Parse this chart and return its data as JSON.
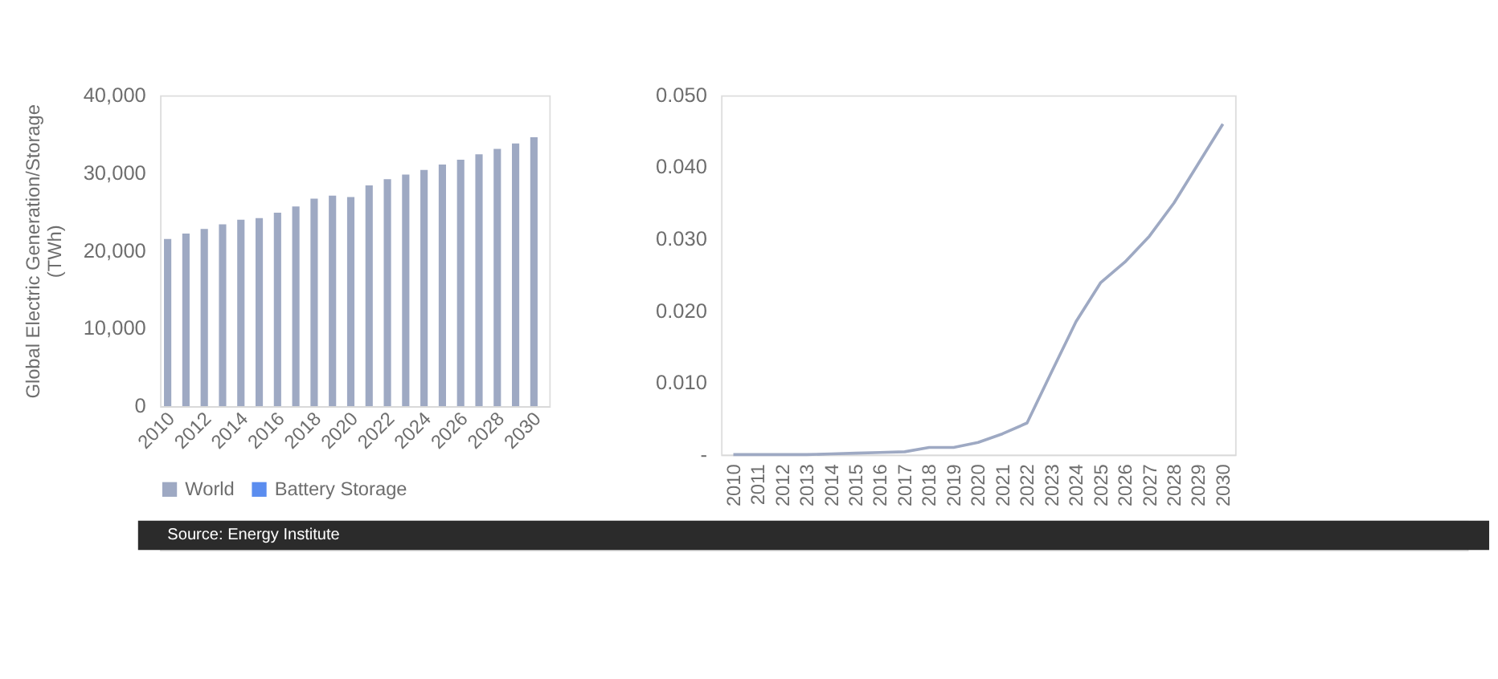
{
  "chart_data": [
    {
      "type": "bar",
      "ylabel": "Global Electric Generation/Storage\n(TWh)",
      "categories": [
        "2010",
        null,
        "2012",
        null,
        "2014",
        null,
        "2016",
        null,
        "2018",
        null,
        "2020",
        null,
        "2022",
        null,
        "2024",
        null,
        "2026",
        null,
        "2028",
        null,
        "2030"
      ],
      "series": [
        {
          "name": "World",
          "color": "#9ea9c3",
          "values": [
            21500,
            22200,
            22800,
            23400,
            24000,
            24200,
            24900,
            25700,
            26700,
            27100,
            26900,
            28400,
            29200,
            29800,
            30400,
            31100,
            31700,
            32400,
            33100,
            33800,
            34600
          ]
        },
        {
          "name": "Battery Storage",
          "color": "#5b8def",
          "values": [
            null,
            null,
            null,
            null,
            null,
            null,
            null,
            null,
            null,
            null,
            null,
            null,
            null,
            null,
            null,
            null,
            null,
            null,
            null,
            null,
            null
          ]
        }
      ],
      "ylim": [
        0,
        40000
      ],
      "yticks": [
        {
          "value": 0,
          "label": "0"
        },
        {
          "value": 10000,
          "label": "10,000"
        },
        {
          "value": 20000,
          "label": "20,000"
        },
        {
          "value": 30000,
          "label": "30,000"
        },
        {
          "value": 40000,
          "label": "40,000"
        }
      ],
      "grid": false,
      "legend": "bottom"
    },
    {
      "type": "line",
      "categories": [
        "2010",
        "2011",
        "2012",
        "2013",
        "2014",
        "2015",
        "2016",
        "2017",
        "2018",
        "2019",
        "2020",
        "2021",
        "2022",
        "2023",
        "2024",
        "2025",
        "2026",
        "2027",
        "2028",
        "2029",
        "2030"
      ],
      "series": [
        {
          "color": "#9ea9c3",
          "values": [
            0,
            0,
            0,
            0,
            0.0001,
            0.0002,
            0.0003,
            0.0004,
            0.001,
            0.001,
            0.0017,
            0.0029,
            0.0044,
            0.0115,
            0.0185,
            0.0239,
            0.0268,
            0.0304,
            0.035,
            0.0405,
            0.046
          ]
        }
      ],
      "ylim": [
        0,
        0.05
      ],
      "yticks": [
        {
          "value": 0,
          "label": "-"
        },
        {
          "value": 0.01,
          "label": "0.010"
        },
        {
          "value": 0.02,
          "label": "0.020"
        },
        {
          "value": 0.03,
          "label": "0.030"
        },
        {
          "value": 0.04,
          "label": "0.040"
        },
        {
          "value": 0.05,
          "label": "0.050"
        }
      ],
      "grid": false,
      "legend": false,
      "marker": "none",
      "line_style": "solid",
      "annotations": [
        "Source: Energy Institute"
      ]
    }
  ]
}
